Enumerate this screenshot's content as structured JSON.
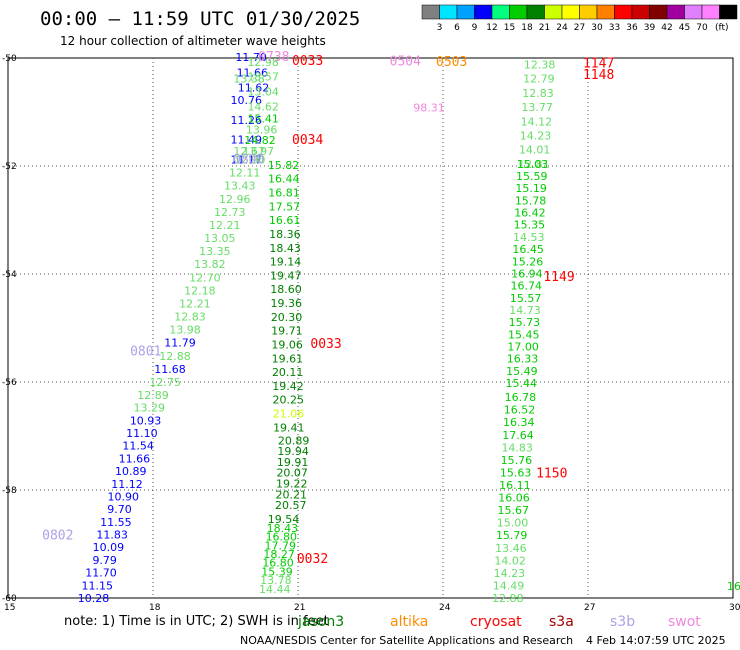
{
  "title": "00:00 – 11:59 UTC 01/30/2025",
  "subtitle": "12 hour collection of altimeter wave heights",
  "note": "note: 1) Time is in UTC; 2) SWH is in feet",
  "credit_org": "NOAA/NESDIS Center for Satellite Applications and Research",
  "credit_date": "4 Feb 14:07:59 UTC 2025",
  "legend_items": [
    {
      "label": "jason3",
      "color": "#008000"
    },
    {
      "label": "altika",
      "color": "#ff8c00"
    },
    {
      "label": "cryosat",
      "color": "#ff0000"
    },
    {
      "label": "s3a",
      "color": "#a00000"
    },
    {
      "label": "s3b",
      "color": "#b0a0e8"
    },
    {
      "label": "swot",
      "color": "#ee88dd"
    }
  ],
  "colorbar": {
    "unit": "(ft)",
    "ticks": [
      "3",
      "6",
      "9",
      "12",
      "15",
      "18",
      "21",
      "24",
      "27",
      "30",
      "33",
      "36",
      "39",
      "42",
      "45",
      "70"
    ],
    "colors": [
      "#808080",
      "#00e5ff",
      "#00a0ff",
      "#0000ff",
      "#00ff7f",
      "#00cc00",
      "#008000",
      "#ccff00",
      "#ffff00",
      "#ffcc00",
      "#ff8000",
      "#ff0000",
      "#cc0000",
      "#800000",
      "#a000a0",
      "#e080ff",
      "#ff80ff",
      "#000000"
    ]
  },
  "chart_data": {
    "type": "scatter",
    "xlim": [
      15,
      30
    ],
    "ylim": [
      -60,
      -50
    ],
    "xticks": [
      "15",
      "18",
      "21",
      "24",
      "27",
      "30"
    ],
    "yticks": [
      "-50",
      "-52",
      "-54",
      "-56",
      "-58",
      "-60"
    ],
    "grid": true,
    "tracks": [
      {
        "from": [
          20.03,
          -49.98
        ],
        "to": [
          20.08,
          -50.55
        ],
        "labels": [
          "11.70",
          "11.66",
          "11.62"
        ],
        "colors": [
          "#0000ff",
          "#0000ff",
          "#0000ff"
        ]
      },
      {
        "from": [
          19.93,
          -50.78
        ],
        "to": [
          19.93,
          -51.88
        ],
        "labels": [
          "10.76",
          "11.26",
          "11.49",
          "11.17"
        ],
        "colors": [
          "#0000ff",
          "#0000ff",
          "#0000ff",
          "#0000ff"
        ]
      },
      {
        "from": [
          19.99,
          -50.38
        ],
        "to": [
          19.99,
          -51.72
        ],
        "labels": [
          "13.38",
          "12.67"
        ],
        "colors": [
          "#66dd66",
          "#66dd66"
        ]
      },
      {
        "from": [
          20.28,
          -50.07
        ],
        "to": [
          20.28,
          -50.9
        ],
        "labels": [
          "12.98",
          "13.57",
          "13.04",
          "14.62"
        ],
        "colors": [
          "#66dd66",
          "#66dd66",
          "#66dd66",
          "#66dd66"
        ]
      },
      {
        "from": [
          20.28,
          -51.12
        ],
        "to": [
          20.18,
          -51.72
        ],
        "labels": [
          "15.41",
          "13.96",
          "14.82",
          "13.97"
        ],
        "colors": [
          "#00cc00",
          "#66dd66",
          "#00cc00",
          "#66dd66"
        ]
      },
      {
        "from": [
          20.0,
          -51.88
        ],
        "to": [
          18.25,
          -56.0
        ],
        "labels": [
          "12.90",
          "12.11",
          "13.43",
          "12.96",
          "12.73",
          "12.21",
          "13.05",
          "13.35",
          "13.82",
          "12.70",
          "12.18",
          "12.21",
          "12.83",
          "13.98",
          "11.79",
          "12.88",
          "11.68",
          "12.75"
        ],
        "colors": [
          "#66dd66",
          "#66dd66",
          "#66dd66",
          "#66dd66",
          "#66dd66",
          "#66dd66",
          "#66dd66",
          "#66dd66",
          "#66dd66",
          "#66dd66",
          "#66dd66",
          "#66dd66",
          "#66dd66",
          "#66dd66",
          "#0000ff",
          "#66dd66",
          "#0000ff",
          "#66dd66"
        ]
      },
      {
        "from": [
          18.0,
          -56.24
        ],
        "to": [
          16.77,
          -60.0
        ],
        "labels": [
          "12.89",
          "13.29",
          "10.93",
          "11.10",
          "11.54",
          "11.66",
          "10.89",
          "11.12",
          "10.90",
          "9.70",
          "11.55",
          "11.83",
          "10.09",
          "9.79",
          "11.70",
          "11.15",
          "10.28"
        ],
        "colors": [
          "#66dd66",
          "#66dd66",
          "#0000ff",
          "#0000ff",
          "#0000ff",
          "#0000ff",
          "#0000ff",
          "#0000ff",
          "#0000ff",
          "#0000ff",
          "#0000ff",
          "#0000ff",
          "#0000ff",
          "#0000ff",
          "#0000ff",
          "#0000ff",
          "#0000ff"
        ]
      },
      {
        "from": [
          20.7,
          -51.98
        ],
        "to": [
          20.81,
          -56.84
        ],
        "labels": [
          "15.82",
          "16.44",
          "16.81",
          "17.57",
          "16.61",
          "18.36",
          "18.43",
          "19.14",
          "19.47",
          "18.60",
          "19.36",
          "20.30",
          "19.71",
          "19.06",
          "19.61",
          "20.11",
          "19.42",
          "20.25",
          "21.06",
          "19.41"
        ],
        "colors": [
          "#00cc00",
          "#00cc00",
          "#00cc00",
          "#00cc00",
          "#00cc00",
          "#008000",
          "#008000",
          "#008000",
          "#008000",
          "#008000",
          "#008000",
          "#008000",
          "#008000",
          "#008000",
          "#008000",
          "#008000",
          "#008000",
          "#008000",
          "#ccff00",
          "#008000"
        ]
      },
      {
        "from": [
          20.91,
          -57.08
        ],
        "to": [
          20.85,
          -58.28
        ],
        "labels": [
          "20.89",
          "19.94",
          "19.91",
          "20.07",
          "19.22",
          "20.21",
          "20.57"
        ],
        "colors": [
          "#008000",
          "#008000",
          "#008000",
          "#008000",
          "#008000",
          "#008000",
          "#008000"
        ]
      },
      {
        "from": [
          20.7,
          -58.54
        ],
        "to": [
          20.52,
          -59.83
        ],
        "labels": [
          "19.54",
          "18.43",
          "16.80",
          "17.79",
          "18.27",
          "16.80",
          "15.39",
          "13.78",
          "14.44"
        ],
        "colors": [
          "#008000",
          "#00cc00",
          "#00cc00",
          "#00cc00",
          "#00cc00",
          "#00cc00",
          "#00cc00",
          "#66dd66",
          "#66dd66"
        ]
      },
      {
        "from": [
          26.0,
          -50.12
        ],
        "to": [
          25.88,
          -51.96
        ],
        "labels": [
          "12.38",
          "12.79",
          "12.83",
          "13.77",
          "14.12",
          "14.23",
          "14.01",
          "12.81"
        ],
        "colors": [
          "#66dd66",
          "#66dd66",
          "#66dd66",
          "#66dd66",
          "#66dd66",
          "#66dd66",
          "#66dd66",
          "#66dd66"
        ]
      },
      {
        "from": [
          25.85,
          -51.96
        ],
        "to": [
          25.62,
          -56.02
        ],
        "labels": [
          "15.03",
          "15.59",
          "15.19",
          "15.78",
          "16.42",
          "15.35",
          "14.53",
          "16.45",
          "15.26",
          "16.94",
          "16.74",
          "15.57",
          "14.73",
          "15.73",
          "15.45",
          "17.00",
          "16.33",
          "15.49",
          "15.44"
        ],
        "colors": [
          "#00cc00",
          "#00cc00",
          "#00cc00",
          "#00cc00",
          "#00cc00",
          "#00cc00",
          "#66dd66",
          "#00cc00",
          "#00cc00",
          "#00cc00",
          "#00cc00",
          "#00cc00",
          "#66dd66",
          "#00cc00",
          "#00cc00",
          "#00cc00",
          "#00cc00",
          "#00cc00",
          "#00cc00"
        ]
      },
      {
        "from": [
          25.6,
          -56.28
        ],
        "to": [
          25.34,
          -60.0
        ],
        "labels": [
          "16.78",
          "16.52",
          "16.34",
          "17.64",
          "14.83",
          "15.76",
          "15.63",
          "16.11",
          "16.06",
          "15.67",
          "15.00",
          "15.79",
          "13.46",
          "14.02",
          "14.23",
          "14.49",
          "12.88"
        ],
        "colors": [
          "#00cc00",
          "#00cc00",
          "#00cc00",
          "#00cc00",
          "#66dd66",
          "#00cc00",
          "#00cc00",
          "#00cc00",
          "#00cc00",
          "#00cc00",
          "#66dd66",
          "#00cc00",
          "#66dd66",
          "#66dd66",
          "#66dd66",
          "#66dd66",
          "#66dd66"
        ]
      },
      {
        "from": [
          23.71,
          -50.92
        ],
        "to": [
          23.71,
          -50.92
        ],
        "labels": [
          "98.31"
        ],
        "colors": [
          "#ee88dd"
        ]
      },
      {
        "from": [
          30.02,
          -59.78
        ],
        "to": [
          30.02,
          -59.78
        ],
        "labels": [
          "16"
        ],
        "colors": [
          "#00cc00"
        ]
      }
    ],
    "passes": [
      {
        "label": "0033",
        "x": 21.2,
        "y": -50.04,
        "color": "#ff0000"
      },
      {
        "label": "0738",
        "x": 20.5,
        "y": -49.96,
        "color": "#ee88dd"
      },
      {
        "label": "0034",
        "x": 21.2,
        "y": -51.5,
        "color": "#ff0000"
      },
      {
        "label": "0800",
        "x": 19.98,
        "y": -51.86,
        "color": "#b0a0e8"
      },
      {
        "label": "0801",
        "x": 17.85,
        "y": -55.42,
        "color": "#b0a0e8"
      },
      {
        "label": "0033",
        "x": 21.58,
        "y": -55.28,
        "color": "#ff0000"
      },
      {
        "label": "0032",
        "x": 21.3,
        "y": -59.26,
        "color": "#ff0000"
      },
      {
        "label": "0802",
        "x": 16.03,
        "y": -58.82,
        "color": "#b0a0e8"
      },
      {
        "label": "0503",
        "x": 24.18,
        "y": -50.06,
        "color": "#ff8c00"
      },
      {
        "label": "0504",
        "x": 23.22,
        "y": -50.05,
        "color": "#ee88dd"
      },
      {
        "label": "1147",
        "x": 27.22,
        "y": -50.08,
        "color": "#ff0000"
      },
      {
        "label": "1148",
        "x": 27.22,
        "y": -50.3,
        "color": "#ff0000"
      },
      {
        "label": "1149",
        "x": 26.4,
        "y": -54.04,
        "color": "#ff0000"
      },
      {
        "label": "1150",
        "x": 26.25,
        "y": -57.68,
        "color": "#ff0000"
      }
    ]
  }
}
